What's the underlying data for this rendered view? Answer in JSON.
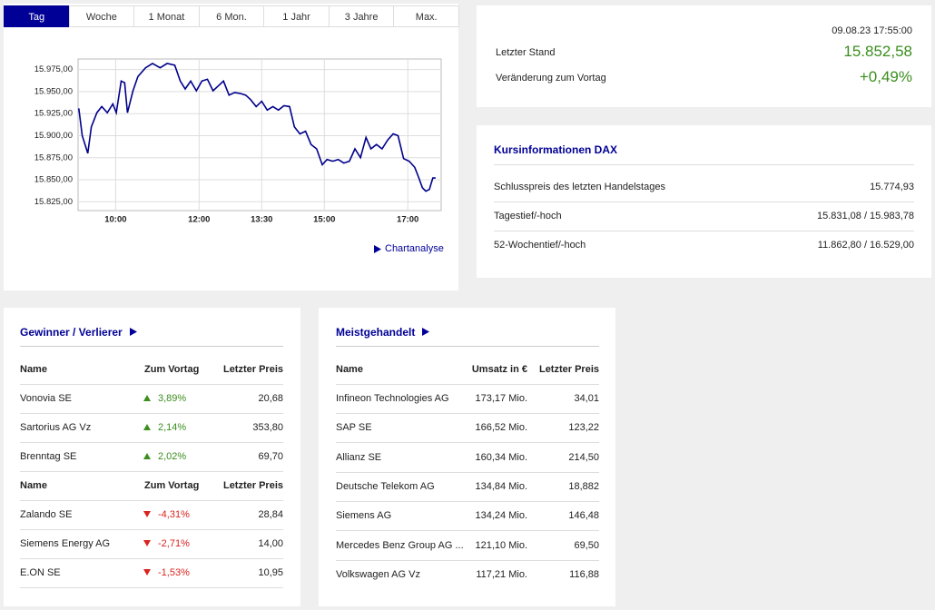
{
  "tabs": [
    "Tag",
    "Woche",
    "1 Monat",
    "6 Mon.",
    "1 Jahr",
    "3 Jahre",
    "Max."
  ],
  "active_tab": 0,
  "chart_data": {
    "type": "line",
    "x": [
      547,
      552,
      560,
      565,
      573,
      580,
      588,
      596,
      601,
      608,
      613,
      617,
      625,
      632,
      643,
      653,
      664,
      674,
      685,
      693,
      700,
      708,
      716,
      724,
      732,
      740,
      747,
      755,
      763,
      771,
      779,
      787,
      794,
      802,
      810,
      818,
      826,
      834,
      842,
      850,
      857,
      865,
      873,
      881,
      889,
      897,
      904,
      912,
      920,
      928,
      936,
      944,
      952,
      960,
      967,
      975,
      983,
      991,
      999,
      1006,
      1014,
      1022,
      1030,
      1035,
      1041,
      1046,
      1051,
      1056,
      1060
    ],
    "values": [
      15931,
      15900,
      15880,
      15910,
      15926,
      15933,
      15926,
      15936,
      15926,
      15962,
      15960,
      15926,
      15951,
      15967,
      15977,
      15982,
      15977,
      15982,
      15980,
      15962,
      15953,
      15962,
      15951,
      15962,
      15964,
      15951,
      15956,
      15962,
      15946,
      15949,
      15948,
      15946,
      15941,
      15933,
      15939,
      15929,
      15933,
      15929,
      15934,
      15933,
      15910,
      15902,
      15905,
      15890,
      15885,
      15867,
      15873,
      15871,
      15873,
      15869,
      15871,
      15885,
      15875,
      15898,
      15885,
      15890,
      15885,
      15895,
      15902,
      15900,
      15874,
      15871,
      15864,
      15854,
      15841,
      15837,
      15839,
      15852,
      15852
    ],
    "color": "#00008b",
    "xlim": [
      546,
      1068
    ],
    "xticks": [
      {
        "value": 600,
        "label": "10:00"
      },
      {
        "value": 720,
        "label": "12:00"
      },
      {
        "value": 810,
        "label": "13:30"
      },
      {
        "value": 900,
        "label": "15:00"
      },
      {
        "value": 1020,
        "label": "17:00"
      }
    ],
    "ylim": [
      15815,
      15987
    ],
    "yticks": [
      {
        "value": 15825,
        "label": "15.825,00"
      },
      {
        "value": 15850,
        "label": "15.850,00"
      },
      {
        "value": 15875,
        "label": "15.875,00"
      },
      {
        "value": 15900,
        "label": "15.900,00"
      },
      {
        "value": 15925,
        "label": "15.925,00"
      },
      {
        "value": 15950,
        "label": "15.950,00"
      },
      {
        "value": 15975,
        "label": "15.975,00"
      }
    ],
    "grid": true
  },
  "chart_link": "Chartanalyse",
  "quote": {
    "timestamp": "09.08.23 17:55:00",
    "last_label": "Letzter Stand",
    "last_value": "15.852,58",
    "change_label": "Veränderung zum Vortag",
    "change_value": "+0,49%"
  },
  "info": {
    "title": "Kursinformationen DAX",
    "rows": [
      [
        "Schlusspreis des letzten Handelstages",
        "15.774,93"
      ],
      [
        "Tagestief/-hoch",
        "15.831,08 / 15.983,78"
      ],
      [
        "52-Wochentief/-hoch",
        "11.862,80 / 16.529,00"
      ]
    ]
  },
  "movers": {
    "title": "Gewinner / Verlierer",
    "gainers_headers": [
      "Name",
      "Zum Vortag",
      "Letzter Preis"
    ],
    "gainers": [
      [
        "Vonovia SE",
        "3,89%",
        "20,68"
      ],
      [
        "Sartorius AG Vz",
        "2,14%",
        "353,80"
      ],
      [
        "Brenntag SE",
        "2,02%",
        "69,70"
      ]
    ],
    "losers_headers": [
      "Name",
      "Zum Vortag",
      "Letzter Preis"
    ],
    "losers": [
      [
        "Zalando SE",
        "-4,31%",
        "28,84"
      ],
      [
        "Siemens Energy AG",
        "-2,71%",
        "14,00"
      ],
      [
        "E.ON SE",
        "-1,53%",
        "10,95"
      ]
    ]
  },
  "most_traded": {
    "title": "Meistgehandelt",
    "headers": [
      "Name",
      "Umsatz in €",
      "Letzter Preis"
    ],
    "rows": [
      [
        "Infineon Technologies AG",
        "173,17 Mio.",
        "34,01"
      ],
      [
        "SAP SE",
        "166,52 Mio.",
        "123,22"
      ],
      [
        "Allianz SE",
        "160,34 Mio.",
        "214,50"
      ],
      [
        "Deutsche Telekom AG",
        "134,84 Mio.",
        "18,882"
      ],
      [
        "Siemens AG",
        "134,24 Mio.",
        "146,48"
      ],
      [
        "Mercedes Benz Group AG ...",
        "121,10 Mio.",
        "69,50"
      ],
      [
        "Volkswagen AG Vz",
        "117,21 Mio.",
        "116,88"
      ]
    ]
  }
}
